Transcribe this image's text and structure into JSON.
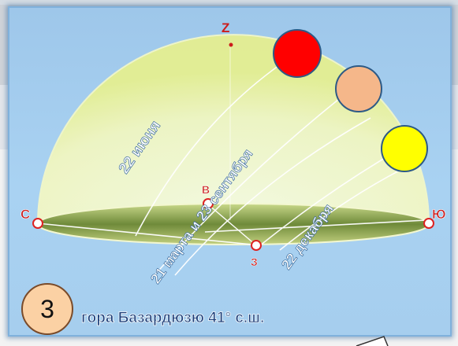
{
  "labels": {
    "zenith": "Z",
    "north": "С",
    "south": "Ю",
    "east": "В",
    "west": "З",
    "june": "22 июня",
    "equinox": "21 марта и 23 сентября",
    "december": "22 декабря",
    "caption": "гора Базардюзю 41° с.ш."
  },
  "slide_number": "3",
  "colors": {
    "sun_june": "#ff0000",
    "sun_equinox": "#f5b78a",
    "sun_december": "#ffff00",
    "dome": "#f0f6b0",
    "caption_text": "#1c3f7a"
  }
}
